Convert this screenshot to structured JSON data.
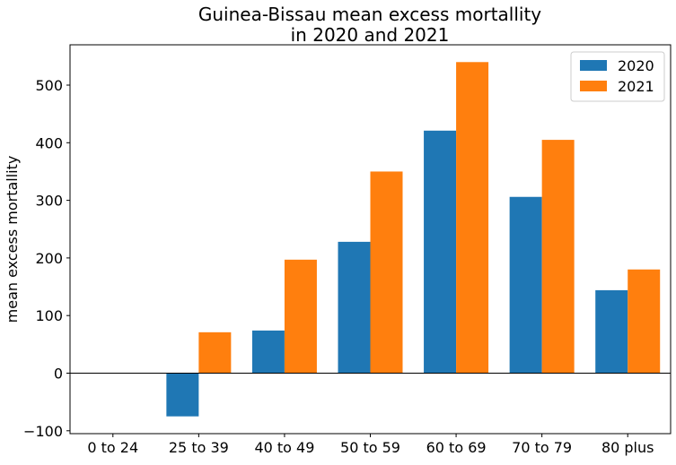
{
  "chart_data": {
    "type": "bar",
    "title_lines": [
      "Guinea-Bissau mean excess mortallity",
      "in 2020 and 2021"
    ],
    "xlabel": "",
    "ylabel": "mean excess mortallity",
    "categories": [
      "0 to 24",
      "25 to 39",
      "40 to 49",
      "50 to 59",
      "60 to 69",
      "70 to 79",
      "80 plus"
    ],
    "series": [
      {
        "name": "2020",
        "color": "#1f77b4",
        "values": [
          0,
          -75,
          74,
          228,
          421,
          306,
          144
        ]
      },
      {
        "name": "2021",
        "color": "#ff7f0e",
        "values": [
          0,
          71,
          197,
          350,
          540,
          405,
          180
        ]
      }
    ],
    "ylim": [
      -105,
      570
    ],
    "yticks": [
      -100,
      0,
      100,
      200,
      300,
      400,
      500
    ],
    "zero_line": true,
    "grid": false,
    "legend_position": "top-right"
  }
}
